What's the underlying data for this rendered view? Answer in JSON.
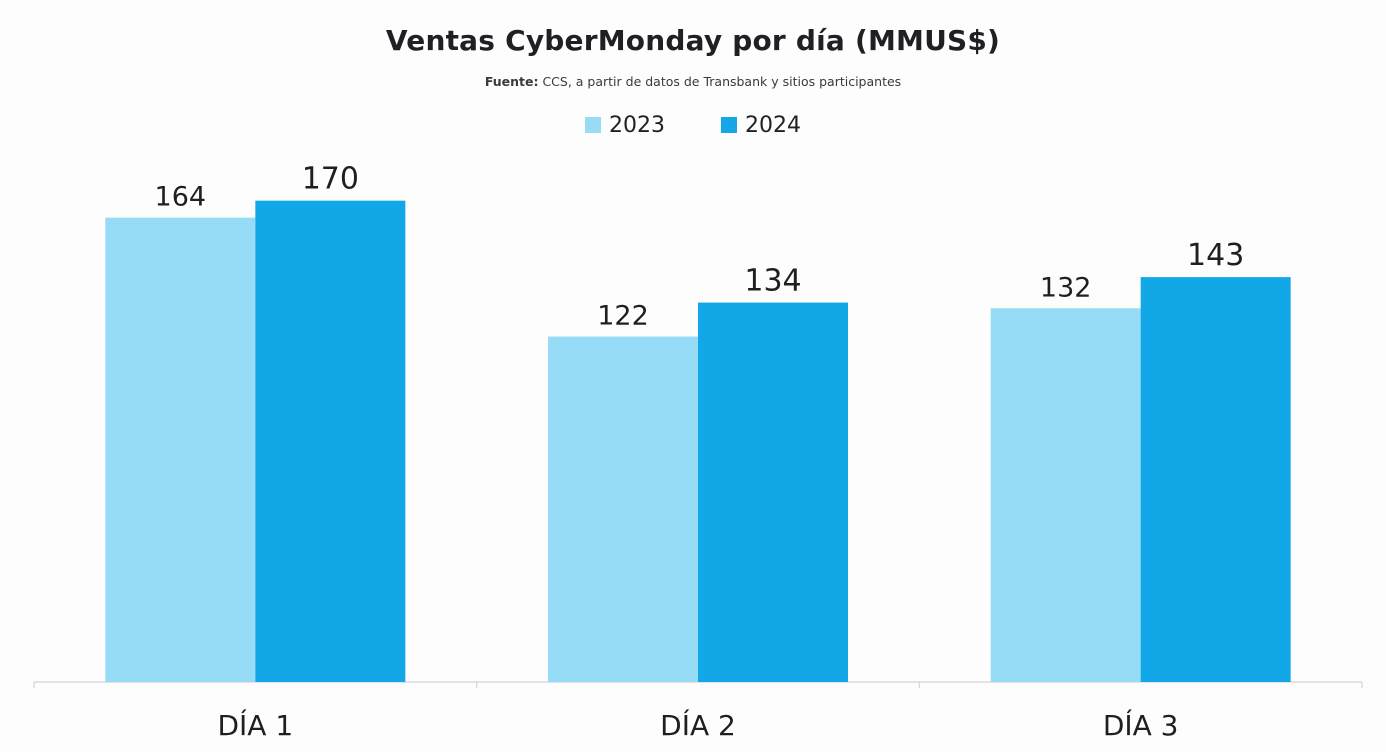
{
  "chart_data": {
    "type": "bar",
    "title": "Ventas CyberMonday por día (MMUS$)",
    "source_label": "Fuente:",
    "source_text": "CCS, a partir de datos de Transbank y sitios participantes",
    "categories": [
      "DÍA 1",
      "DÍA 2",
      "DÍA 3"
    ],
    "series": [
      {
        "name": "2023",
        "values": [
          164,
          122,
          132
        ],
        "color": "#96dcf7"
      },
      {
        "name": "2024",
        "values": [
          170,
          134,
          143
        ],
        "color": "#12a8e8"
      }
    ],
    "ylim": [
      0,
      172
    ],
    "xlabel": "",
    "ylabel": "",
    "grid": false,
    "legend_position": "top-center"
  }
}
